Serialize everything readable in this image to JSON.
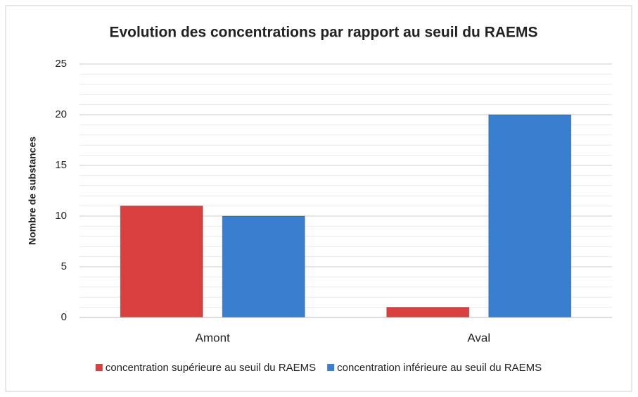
{
  "chart_data": {
    "type": "bar",
    "title": "Evolution des concentrations par rapport au seuil du RAEMS",
    "y_label": "Nombre de substances",
    "categories": [
      "Amont",
      "Aval"
    ],
    "series": [
      {
        "name": "concentration supérieure au seuil du RAEMS",
        "color": "#d9403f",
        "values": [
          11,
          1
        ]
      },
      {
        "name": "concentration inférieure au seuil du RAEMS",
        "color": "#3a7fcf",
        "values": [
          10,
          20
        ]
      }
    ],
    "ylim": [
      0,
      25
    ],
    "yticks": [
      0,
      5,
      10,
      15,
      20,
      25
    ],
    "minor_ytick_step": 1,
    "grid": true,
    "legend": "bottom"
  }
}
